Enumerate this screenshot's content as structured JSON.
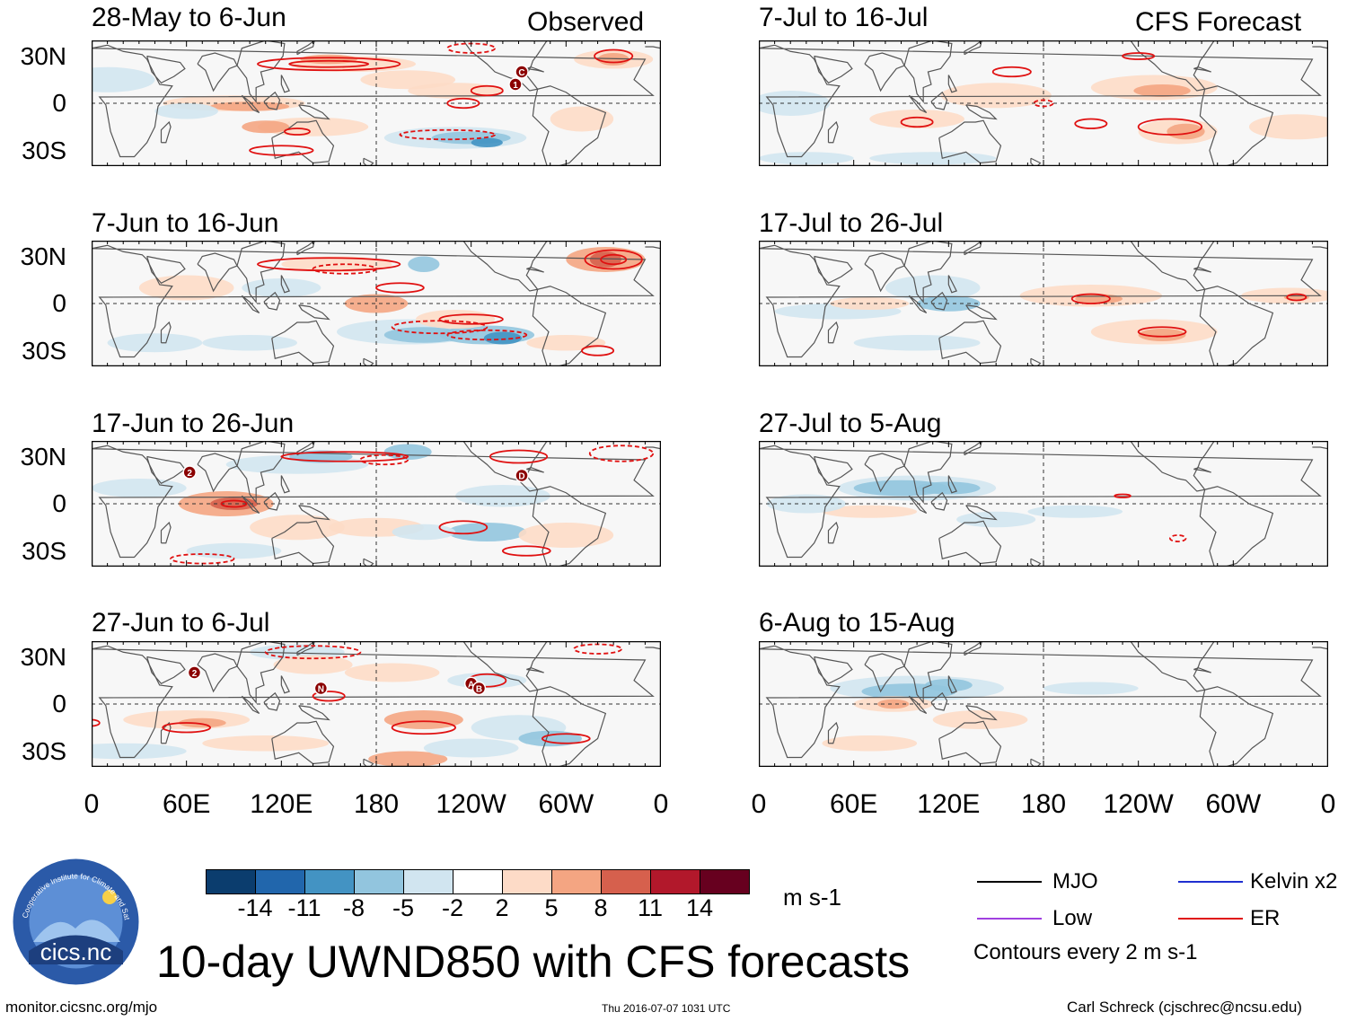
{
  "left_column_label": "Observed",
  "right_column_label": "CFS Forecast",
  "left_panels": [
    {
      "period": "28-May to 6-Jun"
    },
    {
      "period": "7-Jun to 16-Jun"
    },
    {
      "period": "17-Jun to 26-Jun"
    },
    {
      "period": "27-Jun to 6-Jul"
    }
  ],
  "right_panels": [
    {
      "period": "7-Jul to 16-Jul"
    },
    {
      "period": "17-Jul to 26-Jul"
    },
    {
      "period": "27-Jul to 5-Aug"
    },
    {
      "period": "6-Aug to 15-Aug"
    }
  ],
  "lat_labels": [
    "30N",
    "0",
    "30S"
  ],
  "lon_labels": [
    "0",
    "60E",
    "120E",
    "180",
    "120W",
    "60W",
    "0"
  ],
  "storm_markers": {
    "panel1": [
      "1",
      "C"
    ],
    "panel3": [
      "2",
      "D"
    ],
    "panel4": [
      "2",
      "N",
      "A",
      "B"
    ]
  },
  "colorbar": {
    "ticks": [
      "-14",
      "-11",
      "-8",
      "-5",
      "-2",
      "2",
      "5",
      "8",
      "11",
      "14"
    ],
    "colors": [
      "#0b3d6e",
      "#2166ac",
      "#4393c3",
      "#92c5de",
      "#d1e5f0",
      "#ffffff",
      "#fddbc7",
      "#f4a582",
      "#d6604d",
      "#b2182b",
      "#67001f"
    ],
    "units": "m s-1"
  },
  "legend": {
    "mjo": "MJO",
    "kelvin": "Kelvin x2",
    "low": "Low",
    "er": "ER",
    "contours_note": "Contours every 2 m s-1",
    "colors": {
      "mjo": "#000000",
      "kelvin": "#1f2fd0",
      "low": "#a040e0",
      "er": "#e01010"
    }
  },
  "title": "10-day UWND850 with CFS forecasts",
  "logo_text": "cics.nc",
  "logo_ring_text": "Cooperative Institute for Climate and Satellites",
  "footer": {
    "url": "monitor.cicsnc.org/mjo",
    "timestamp": "Thu 2016-07-07 1031 UTC",
    "author": "Carl Schreck (cjschrec@ncsu.edu)"
  }
}
